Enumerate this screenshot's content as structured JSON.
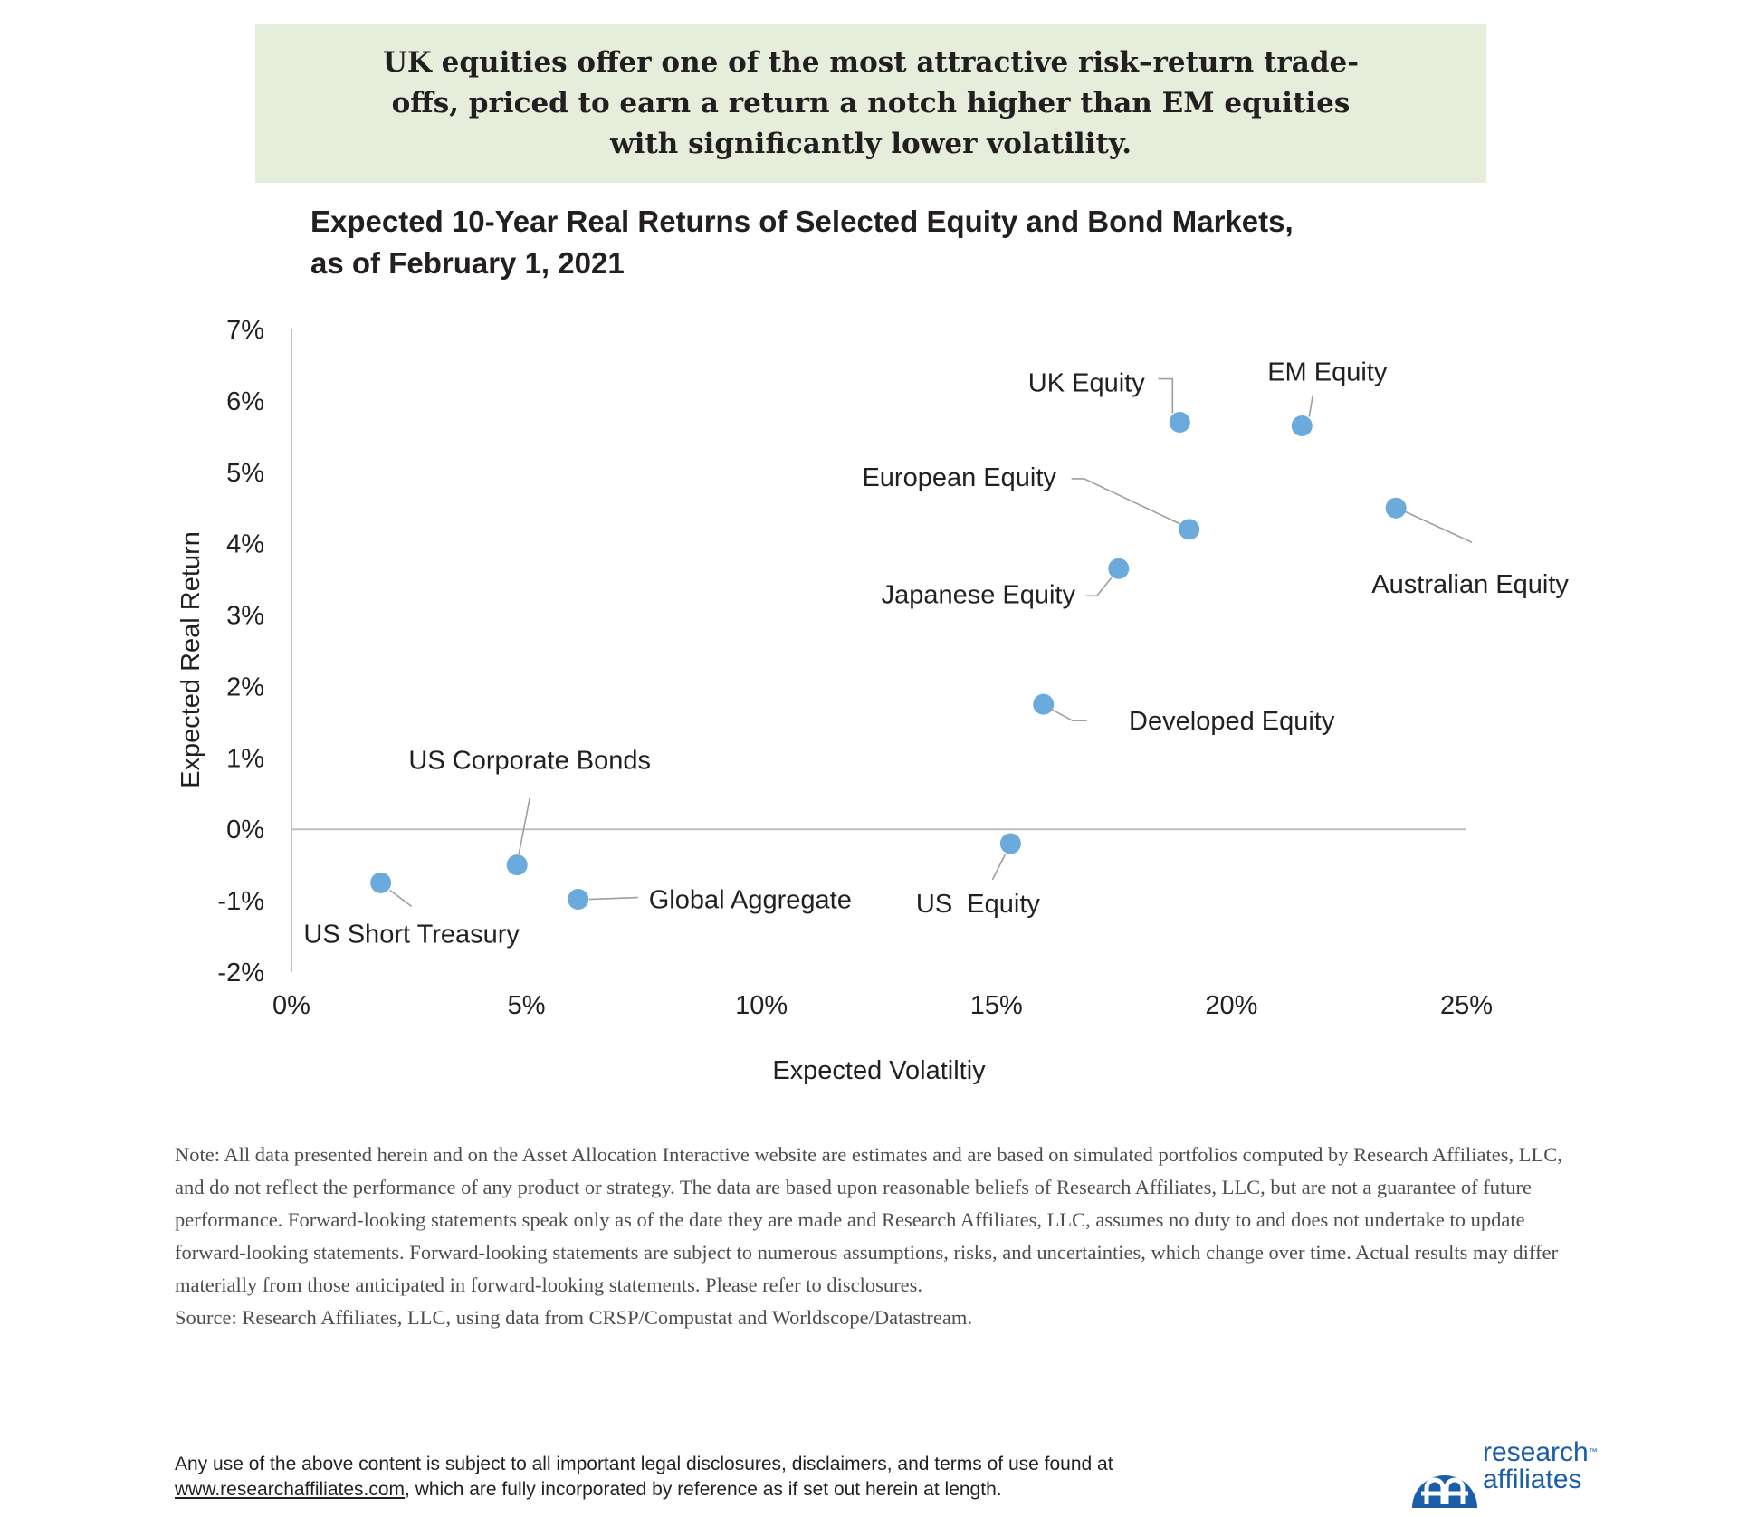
{
  "banner": {
    "text": "UK equities offer one of the most attractive risk–return trade-offs, priced to earn a return a notch higher than EM equities with significantly lower volatility."
  },
  "chart_title": {
    "line1": "Expected 10-Year Real Returns of Selected Equity and Bond Markets,",
    "line2": "as of February 1, 2021"
  },
  "chart_data": {
    "type": "scatter",
    "title": "Expected 10-Year Real Returns of Selected Equity and Bond Markets, as of February 1, 2021",
    "xlabel": "Expected Volatiltiy",
    "ylabel": "Expected Real Return",
    "xlim": [
      0,
      25
    ],
    "ylim": [
      -2,
      7
    ],
    "x_ticks": [
      "0%",
      "5%",
      "10%",
      "15%",
      "20%",
      "25%"
    ],
    "y_ticks": [
      "7%",
      "6%",
      "5%",
      "4%",
      "3%",
      "2%",
      "1%",
      "0%",
      "-1%",
      "-2%"
    ],
    "marker_color": "#6aaadc",
    "points": [
      {
        "label": "UK Equity",
        "x": 18.9,
        "y": 5.7
      },
      {
        "label": "EM Equity",
        "x": 21.5,
        "y": 5.65
      },
      {
        "label": "European Equity",
        "x": 19.1,
        "y": 4.2
      },
      {
        "label": "Australian Equity",
        "x": 23.5,
        "y": 4.5
      },
      {
        "label": "Japanese Equity",
        "x": 17.6,
        "y": 3.65
      },
      {
        "label": "Developed Equity",
        "x": 16.0,
        "y": 1.75
      },
      {
        "label": "US Corporate Bonds",
        "x": 4.8,
        "y": -0.5
      },
      {
        "label": "US Short Treasury",
        "x": 1.9,
        "y": -0.75
      },
      {
        "label": "Global Aggregate",
        "x": 6.1,
        "y": -0.98
      },
      {
        "label": "US  Equity",
        "x": 15.3,
        "y": -0.2
      }
    ]
  },
  "note": {
    "text": "Note: All data presented herein and on the Asset Allocation Interactive website are estimates and are based on simulated portfolios computed by Research Affiliates, LLC, and do not reflect the performance of any product or strategy. The data are based upon reasonable beliefs of Research Affiliates, LLC, but are not a guarantee of future performance. Forward-looking statements speak only as of the date they are made and Research Affiliates, LLC, assumes no duty to and does not undertake to update forward-looking statements. Forward-looking statements are subject to numerous assumptions, risks, and uncertainties, which change over time. Actual results may differ materially from those anticipated in forward-looking statements. Please refer to disclosures.",
    "source": "Source: Research Affiliates, LLC, using data from CRSP/Compustat and Worldscope/Datastream."
  },
  "footer": {
    "line1": "Any use of the above content is subject to all important legal disclosures, disclaimers, and terms of use found at",
    "link": "www.researchaffiliates.com",
    "line2_rest": ", which are fully incorporated by reference as if set out herein at length."
  },
  "logo": {
    "line1": "research",
    "tm": "™",
    "line2": "affiliates",
    "color": "#1a5da8"
  }
}
